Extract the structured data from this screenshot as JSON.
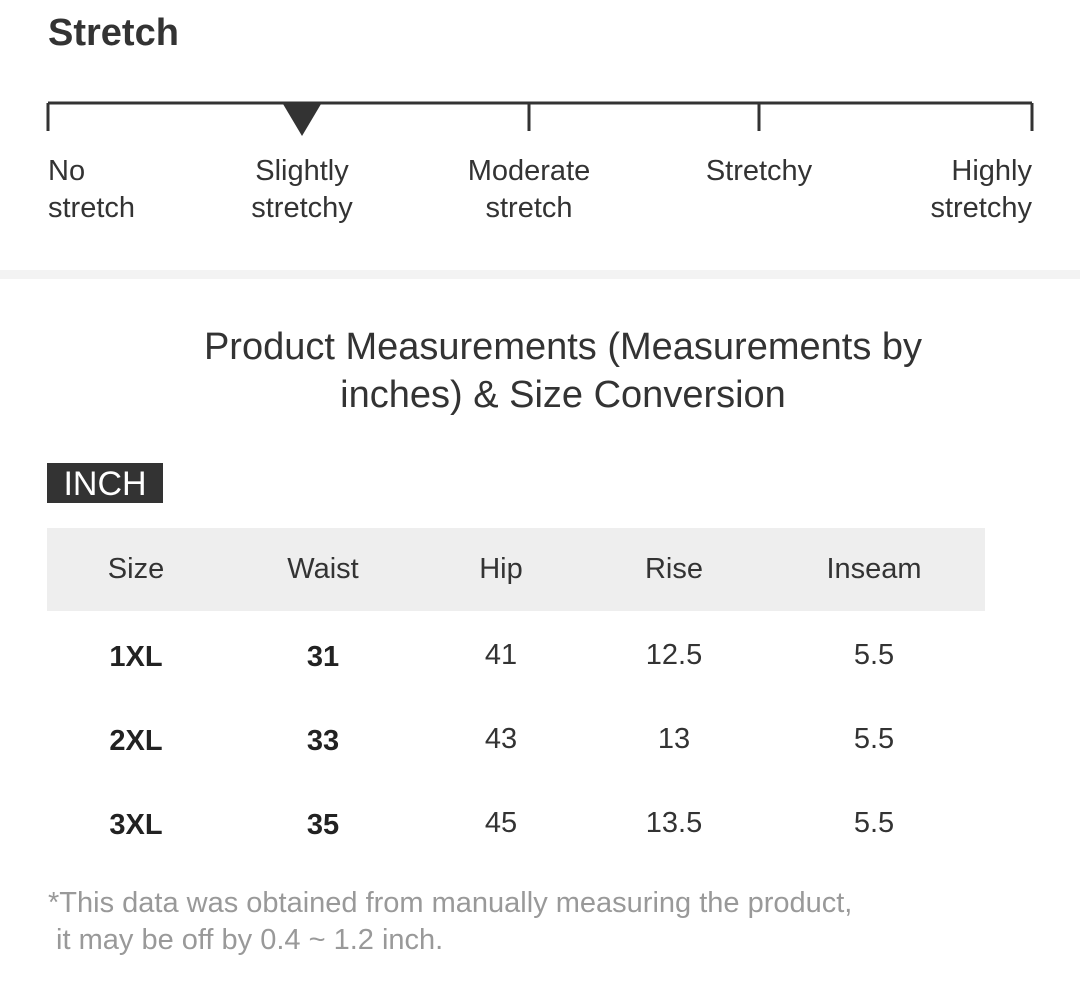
{
  "stretch": {
    "title": "Stretch",
    "levels": [
      "No stretch",
      "Slightly stretchy",
      "Moderate stretch",
      "Stretchy",
      "Highly stretchy"
    ],
    "selected": 1
  },
  "measurements": {
    "title": "Product Measurements (Measurements by inches) & Size Conversion",
    "unit_tab": "INCH",
    "table": {
      "columns": [
        "Size",
        "Waist",
        "Hip",
        "Rise",
        "Inseam"
      ],
      "rows": [
        [
          "1XL",
          31,
          41,
          12.5,
          5.5
        ],
        [
          "2XL",
          33,
          43,
          13,
          5.5
        ],
        [
          "3XL",
          35,
          45,
          13.5,
          5.5
        ]
      ]
    },
    "footnote": [
      "*This data was obtained from manually measuring the product,",
      " it may be off by 0.4 ~ 1.2 inch."
    ]
  }
}
